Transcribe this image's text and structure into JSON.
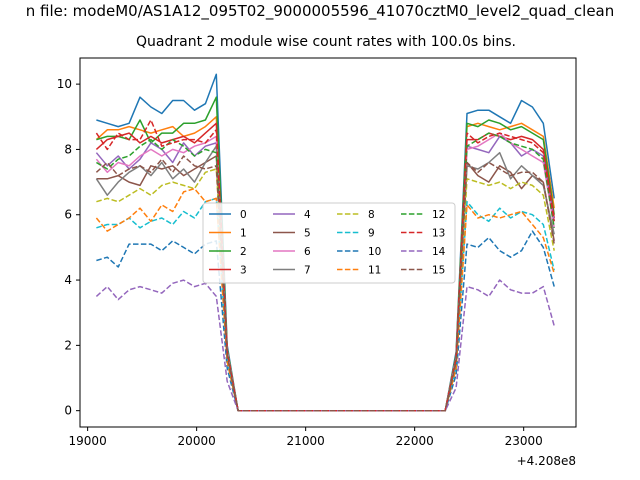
{
  "suptitle": "n file: modeM0/AS1A12_095T02_9000005596_41070cztM0_level2_quad_clean",
  "chart_data": {
    "type": "line",
    "title": "Quadrant 2 module wise count rates with 100.0s bins.",
    "xlabel": "",
    "ylabel": "",
    "offset_text": "+4.208e8",
    "xlim": [
      18930,
      23480
    ],
    "ylim": [
      -0.5,
      10.8
    ],
    "grid": false,
    "legend_position": "center",
    "x_ticks": [
      19000,
      20000,
      21000,
      22000,
      23000
    ],
    "y_ticks": [
      0,
      2,
      4,
      6,
      8,
      10
    ],
    "x": [
      19080,
      19180,
      19280,
      19380,
      19480,
      19580,
      19680,
      19780,
      19880,
      19980,
      20080,
      20180,
      20280,
      20380,
      20480,
      22280,
      22380,
      22480,
      22580,
      22680,
      22780,
      22880,
      22980,
      23080,
      23180,
      23280
    ],
    "series": [
      {
        "name": "0",
        "color": "#1f77b4",
        "dash": "solid",
        "values": [
          8.9,
          8.8,
          8.7,
          8.8,
          9.6,
          9.3,
          9.1,
          9.5,
          9.5,
          9.2,
          9.4,
          10.3,
          2.0,
          0,
          0,
          0,
          1.8,
          9.1,
          9.2,
          9.2,
          9.0,
          8.8,
          9.5,
          9.3,
          8.8,
          6.5
        ]
      },
      {
        "name": "1",
        "color": "#ff7f0e",
        "dash": "solid",
        "values": [
          8.3,
          8.6,
          8.6,
          8.7,
          8.6,
          8.5,
          8.6,
          8.7,
          8.4,
          8.5,
          8.7,
          9.0,
          1.9,
          0,
          0,
          0,
          1.7,
          8.7,
          8.8,
          8.7,
          8.6,
          8.7,
          8.8,
          8.6,
          8.4,
          6.2
        ]
      },
      {
        "name": "2",
        "color": "#2ca02c",
        "dash": "solid",
        "values": [
          8.3,
          8.4,
          8.4,
          8.3,
          8.9,
          8.2,
          8.5,
          8.5,
          8.8,
          8.8,
          8.9,
          9.6,
          1.9,
          0,
          0,
          0,
          1.7,
          8.8,
          8.7,
          8.9,
          8.8,
          8.6,
          8.7,
          8.5,
          8.3,
          6.0
        ]
      },
      {
        "name": "3",
        "color": "#d62728",
        "dash": "solid",
        "values": [
          8.0,
          8.3,
          8.4,
          8.5,
          8.2,
          8.4,
          8.2,
          8.3,
          8.4,
          8.2,
          8.5,
          8.8,
          1.8,
          0,
          0,
          0,
          1.6,
          8.3,
          8.3,
          8.5,
          8.4,
          8.3,
          8.4,
          8.3,
          8.0,
          5.9
        ]
      },
      {
        "name": "4",
        "color": "#9467bd",
        "dash": "solid",
        "values": [
          7.9,
          7.5,
          7.8,
          7.4,
          7.7,
          8.2,
          8.0,
          7.6,
          8.2,
          7.8,
          8.1,
          8.2,
          1.8,
          0,
          0,
          0,
          1.6,
          8.1,
          8.0,
          7.9,
          8.4,
          8.2,
          7.8,
          8.0,
          7.8,
          5.8
        ]
      },
      {
        "name": "5",
        "color": "#8c564b",
        "dash": "solid",
        "values": [
          7.1,
          7.1,
          7.2,
          7.0,
          6.9,
          7.5,
          7.4,
          7.5,
          7.2,
          7.4,
          7.6,
          7.8,
          1.7,
          0,
          0,
          0,
          1.5,
          7.6,
          7.2,
          7.0,
          7.5,
          7.3,
          6.8,
          7.2,
          7.0,
          5.2
        ]
      },
      {
        "name": "6",
        "color": "#e377c2",
        "dash": "solid",
        "values": [
          7.7,
          7.3,
          7.6,
          7.5,
          7.8,
          8.0,
          7.8,
          8.0,
          7.9,
          8.1,
          8.2,
          8.4,
          1.8,
          0,
          0,
          0,
          1.6,
          8.0,
          8.1,
          8.3,
          8.5,
          8.2,
          8.0,
          7.8,
          7.6,
          5.6
        ]
      },
      {
        "name": "7",
        "color": "#7f7f7f",
        "dash": "solid",
        "values": [
          7.1,
          6.6,
          7.0,
          7.3,
          7.5,
          7.2,
          7.6,
          7.1,
          7.4,
          7.0,
          7.6,
          8.1,
          1.7,
          0,
          0,
          0,
          1.5,
          7.5,
          7.4,
          7.6,
          7.9,
          7.1,
          7.5,
          7.2,
          6.9,
          5.4
        ]
      },
      {
        "name": "8",
        "color": "#bcbd22",
        "dash": "dashed",
        "values": [
          6.4,
          6.5,
          6.4,
          6.6,
          6.8,
          6.6,
          6.9,
          7.0,
          6.9,
          6.8,
          7.3,
          7.4,
          1.6,
          0,
          0,
          0,
          1.4,
          7.1,
          7.0,
          6.9,
          7.0,
          6.8,
          7.0,
          6.9,
          6.6,
          4.9
        ]
      },
      {
        "name": "9",
        "color": "#17becf",
        "dash": "dashed",
        "values": [
          5.6,
          5.7,
          5.7,
          5.9,
          5.6,
          5.8,
          5.9,
          5.7,
          6.1,
          5.9,
          6.4,
          6.5,
          1.5,
          0,
          0,
          0,
          1.3,
          6.4,
          6.0,
          5.8,
          6.2,
          5.9,
          6.1,
          6.0,
          5.7,
          4.3
        ]
      },
      {
        "name": "10",
        "color": "#1f77b4",
        "dash": "dashed",
        "values": [
          4.6,
          4.7,
          4.4,
          5.1,
          5.1,
          5.1,
          4.9,
          5.2,
          5.0,
          4.8,
          5.1,
          5.2,
          1.3,
          0,
          0,
          0,
          1.1,
          5.1,
          5.0,
          5.3,
          4.9,
          4.7,
          4.9,
          5.5,
          5.0,
          3.8
        ]
      },
      {
        "name": "11",
        "color": "#ff7f0e",
        "dash": "dashed",
        "values": [
          5.9,
          5.5,
          5.7,
          5.9,
          6.2,
          5.8,
          6.3,
          6.1,
          6.7,
          6.8,
          6.4,
          6.5,
          1.5,
          0,
          0,
          0,
          1.3,
          6.3,
          5.9,
          6.0,
          5.9,
          6.0,
          6.1,
          5.7,
          5.3,
          4.2
        ]
      },
      {
        "name": "12",
        "color": "#2ca02c",
        "dash": "dashed",
        "values": [
          7.6,
          7.4,
          7.7,
          7.8,
          8.1,
          8.3,
          8.0,
          8.3,
          8.1,
          7.8,
          8.0,
          7.9,
          1.7,
          0,
          0,
          0,
          1.5,
          8.1,
          8.3,
          8.5,
          8.4,
          8.2,
          8.1,
          8.0,
          7.7,
          5.6
        ]
      },
      {
        "name": "13",
        "color": "#d62728",
        "dash": "dashed",
        "values": [
          8.5,
          8.0,
          8.5,
          8.3,
          8.3,
          8.9,
          8.1,
          8.2,
          8.3,
          8.3,
          8.2,
          8.6,
          1.8,
          0,
          0,
          0,
          1.6,
          8.5,
          8.2,
          8.4,
          8.5,
          8.4,
          8.3,
          8.2,
          7.9,
          5.8
        ]
      },
      {
        "name": "14",
        "color": "#9467bd",
        "dash": "dashed",
        "values": [
          3.5,
          3.8,
          3.4,
          3.7,
          3.8,
          3.7,
          3.6,
          3.9,
          4.0,
          3.8,
          3.9,
          3.5,
          0.9,
          0,
          0,
          0,
          0.7,
          3.8,
          3.7,
          3.5,
          4.0,
          3.7,
          3.6,
          3.6,
          3.8,
          2.6
        ]
      },
      {
        "name": "15",
        "color": "#8c564b",
        "dash": "dashed",
        "values": [
          7.3,
          7.6,
          7.2,
          7.4,
          7.5,
          7.3,
          7.7,
          7.3,
          7.8,
          7.5,
          7.4,
          7.5,
          1.7,
          0,
          0,
          0,
          1.5,
          7.6,
          7.3,
          7.6,
          7.4,
          7.2,
          7.3,
          7.3,
          7.0,
          5.1
        ]
      }
    ]
  }
}
